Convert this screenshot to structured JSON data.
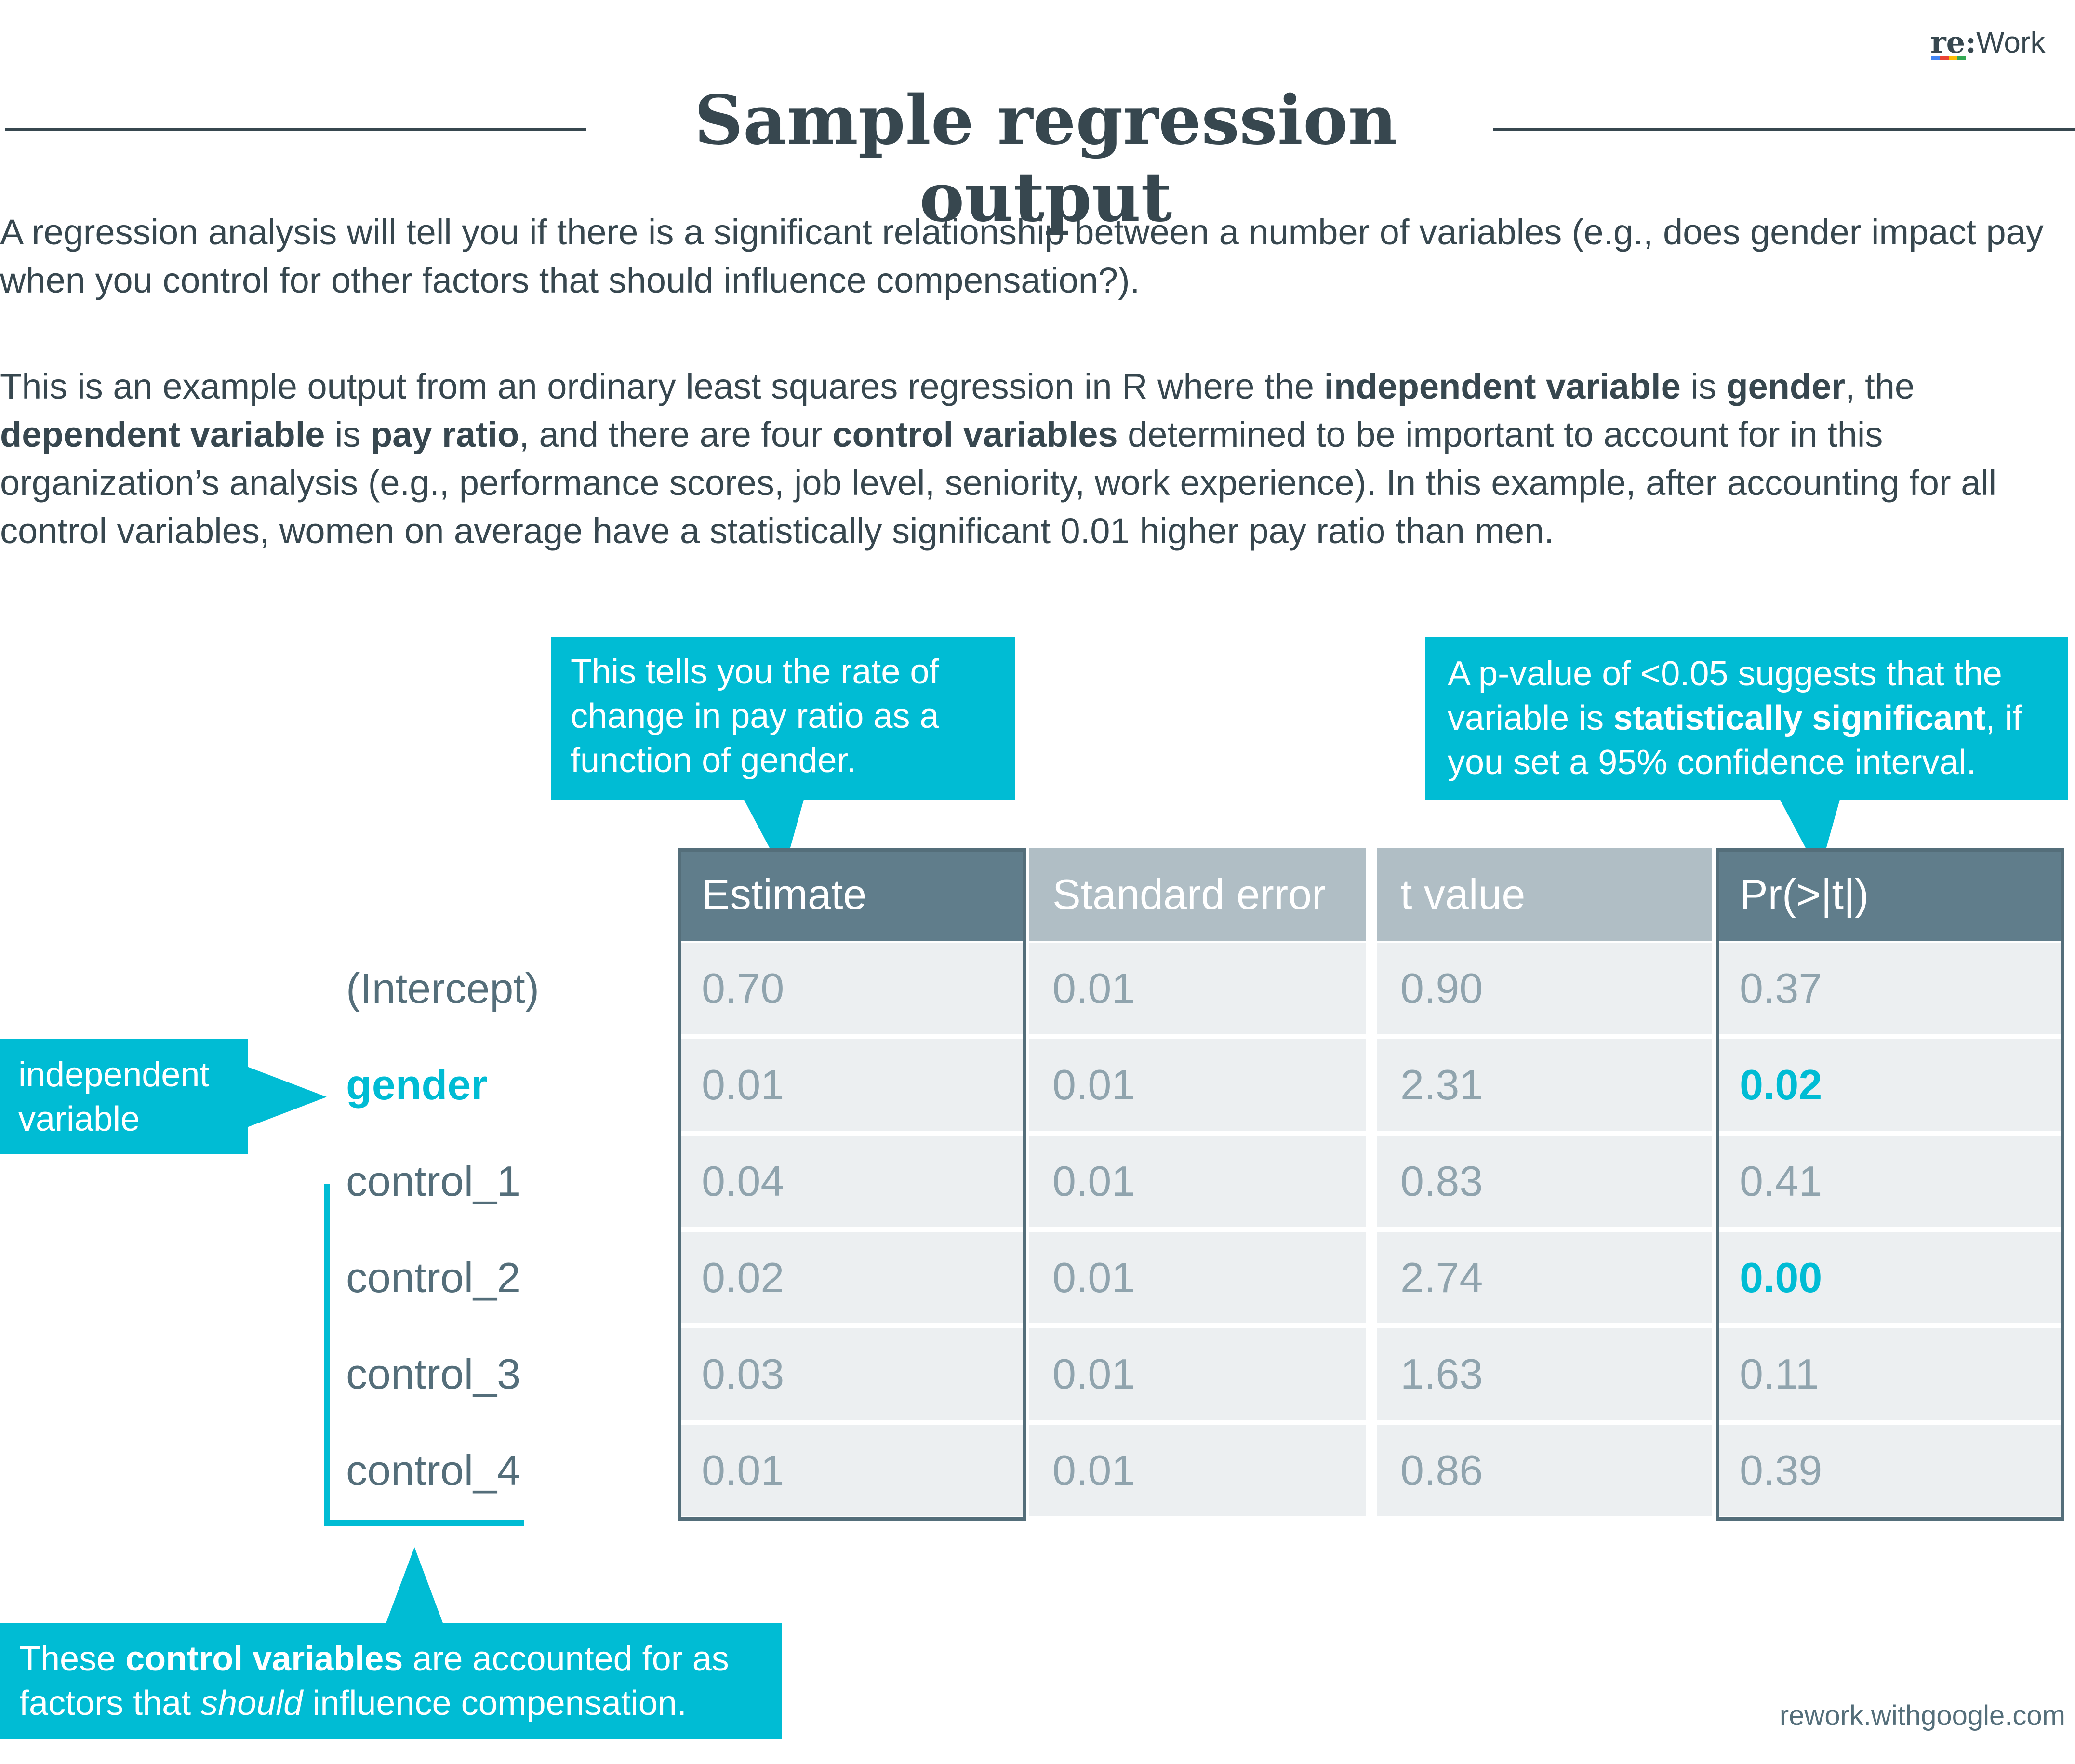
{
  "logo": {
    "prefix": "re:",
    "suffix": "Work"
  },
  "title": "Sample regression output",
  "intro": "A regression analysis will tell you if there is a significant relationship between a number of variables (e.g., does gender impact pay when you control for other factors that should influence compensation?).",
  "example": {
    "p1": "This is an example output from an ordinary least squares regression in R where the ",
    "b1": "independent variable",
    "p2": " is ",
    "b2": "gender",
    "p3": ", the ",
    "b3": "dependent variable",
    "p4": " is ",
    "b4": "pay ratio",
    "p5": ", and there are four ",
    "b5": "control variables",
    "p6": " determined to be important to account for in this organization’s analysis (e.g., performance scores, job level, seniority, work experience). In this example, after accounting for all control variables, women on average have a statistically significant 0.01 higher pay ratio than men."
  },
  "callouts": {
    "estimate": "This tells you the rate of change in pay ratio as a function of gender.",
    "pvalue": {
      "p1": "A p-value of <0.05 suggests that the variable is ",
      "b1": "statistically significant",
      "p2": ", if you set a 95% confidence interval."
    },
    "independent": "independent variable",
    "controls": {
      "p1": "These ",
      "b1": "control variables",
      "p2": " are accounted for as factors that ",
      "i1": "should",
      "p3": " influence compensation."
    }
  },
  "table": {
    "headers": [
      "Estimate",
      "Standard error",
      "t value",
      "Pr(>|t|)"
    ],
    "rows": [
      {
        "label": "(Intercept)",
        "estimate": "0.70",
        "std_error": "0.01",
        "t_value": "0.90",
        "p_value": "0.37"
      },
      {
        "label": "gender",
        "estimate": "0.01",
        "std_error": "0.01",
        "t_value": "2.31",
        "p_value": "0.02"
      },
      {
        "label": "control_1",
        "estimate": "0.04",
        "std_error": "0.01",
        "t_value": "0.83",
        "p_value": "0.41"
      },
      {
        "label": "control_2",
        "estimate": "0.02",
        "std_error": "0.01",
        "t_value": "2.74",
        "p_value": "0.00"
      },
      {
        "label": "control_3",
        "estimate": "0.03",
        "std_error": "0.01",
        "t_value": "1.63",
        "p_value": "0.11"
      },
      {
        "label": "control_4",
        "estimate": "0.01",
        "std_error": "0.01",
        "t_value": "0.86",
        "p_value": "0.39"
      }
    ]
  },
  "footer": "rework.withgoogle.com",
  "colors": {
    "accent": "#00bcd4",
    "dark_header": "#607d8b",
    "light_header": "#b0bec5",
    "cell_bg": "#eceff1",
    "text": "#37474f"
  }
}
